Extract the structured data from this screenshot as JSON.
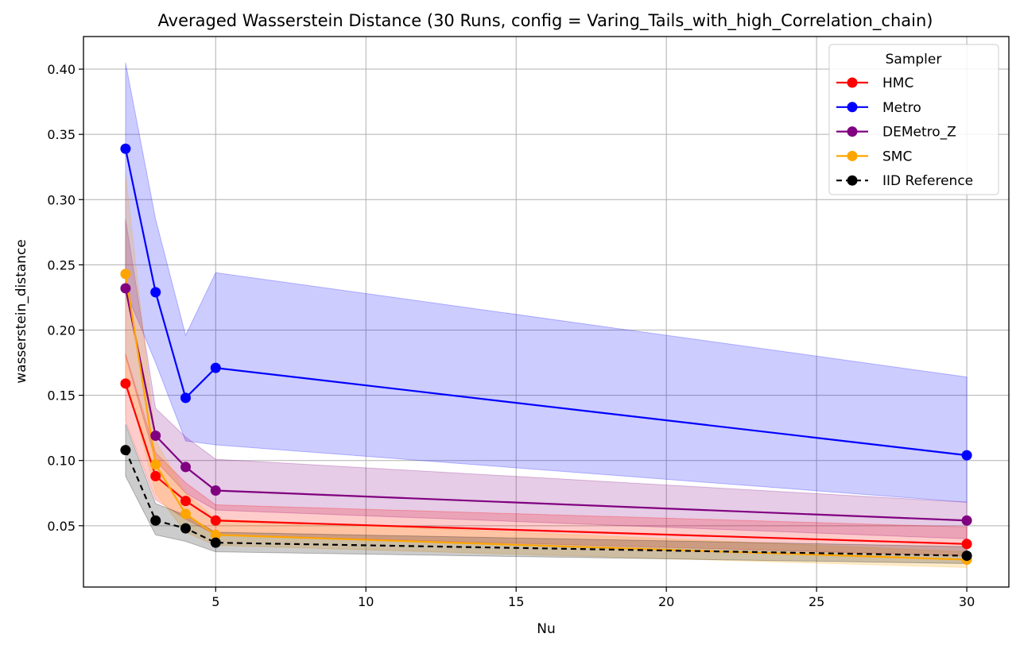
{
  "chart_data": {
    "type": "line",
    "title": "Averaged Wasserstein Distance (30 Runs, config = Varing_Tails_with_high_Correlation_chain)",
    "xlabel": "Nu",
    "ylabel": "wasserstein_distance",
    "xlim": [
      0.6,
      31.4
    ],
    "ylim": [
      0.003,
      0.425
    ],
    "xticks": [
      5,
      10,
      15,
      20,
      25,
      30
    ],
    "xtick_labels": [
      "5",
      "10",
      "15",
      "20",
      "25",
      "30"
    ],
    "yticks": [
      0.05,
      0.1,
      0.15,
      0.2,
      0.25,
      0.3,
      0.35,
      0.4
    ],
    "ytick_labels": [
      "0.05",
      "0.10",
      "0.15",
      "0.20",
      "0.25",
      "0.30",
      "0.35",
      "0.40"
    ],
    "grid": true,
    "legend": {
      "title": "Sampler",
      "position": "top-right"
    },
    "x": [
      2,
      3,
      4,
      5,
      30
    ],
    "series": [
      {
        "name": "Metro",
        "color": "#0000ff",
        "dashed": false,
        "values": [
          0.339,
          0.229,
          0.148,
          0.171,
          0.104
        ],
        "lower": [
          0.23,
          0.175,
          0.115,
          0.112,
          0.068
        ],
        "upper": [
          0.405,
          0.285,
          0.196,
          0.244,
          0.164
        ]
      },
      {
        "name": "DEMetro_Z",
        "color": "#800080",
        "dashed": false,
        "values": [
          0.232,
          0.119,
          0.095,
          0.077,
          0.054
        ],
        "lower": [
          0.18,
          0.1,
          0.075,
          0.062,
          0.04
        ],
        "upper": [
          0.285,
          0.14,
          0.118,
          0.101,
          0.068
        ]
      },
      {
        "name": "HMC",
        "color": "#ff0000",
        "dashed": false,
        "values": [
          0.159,
          0.088,
          0.069,
          0.054,
          0.036
        ],
        "lower": [
          0.13,
          0.07,
          0.055,
          0.043,
          0.027
        ],
        "upper": [
          0.182,
          0.106,
          0.083,
          0.066,
          0.049
        ]
      },
      {
        "name": "SMC",
        "color": "#ffa500",
        "dashed": false,
        "values": [
          0.243,
          0.097,
          0.059,
          0.043,
          0.024
        ],
        "lower": [
          0.165,
          0.075,
          0.045,
          0.035,
          0.018
        ],
        "upper": [
          0.32,
          0.115,
          0.075,
          0.055,
          0.03
        ]
      },
      {
        "name": "IID Reference",
        "color": "#000000",
        "dashed": true,
        "values": [
          0.108,
          0.054,
          0.048,
          0.037,
          0.027
        ],
        "lower": [
          0.088,
          0.043,
          0.038,
          0.03,
          0.021
        ],
        "upper": [
          0.128,
          0.067,
          0.058,
          0.045,
          0.034
        ]
      }
    ],
    "legend_order": [
      "HMC",
      "Metro",
      "DEMetro_Z",
      "SMC",
      "IID Reference"
    ]
  }
}
